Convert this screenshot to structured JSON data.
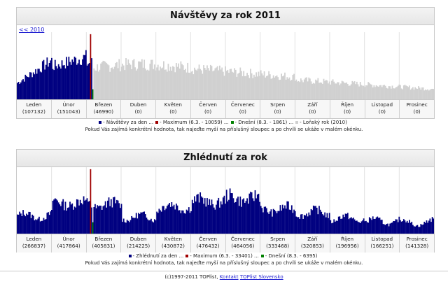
{
  "colors": {
    "visits": "#000080",
    "max": "#a00000",
    "today": "#008000",
    "last_year": "#d0d0d0"
  },
  "visits_panel": {
    "title": "Návštěvy za rok 2011",
    "prev_link": "<< 2010",
    "months": [
      {
        "name": "Leden",
        "value": "(107132)"
      },
      {
        "name": "Únor",
        "value": "(151043)"
      },
      {
        "name": "Březen",
        "value": "(46990)"
      },
      {
        "name": "Duben",
        "value": "(0)"
      },
      {
        "name": "Květen",
        "value": "(0)"
      },
      {
        "name": "Červen",
        "value": "(0)"
      },
      {
        "name": "Červenec",
        "value": "(0)"
      },
      {
        "name": "Srpen",
        "value": "(0)"
      },
      {
        "name": "Září",
        "value": "(0)"
      },
      {
        "name": "Říjen",
        "value": "(0)"
      },
      {
        "name": "Listopad",
        "value": "(0)"
      },
      {
        "name": "Prosinec",
        "value": "(0)"
      }
    ],
    "legend": [
      {
        "color": "visits",
        "text": "- Návštěvy za den ..."
      },
      {
        "color": "max",
        "text": "- Maximum (6.3. - 10059) ..."
      },
      {
        "color": "today",
        "text": "- Dnešní (8.3. - 1861) ..."
      },
      {
        "color": "last_year",
        "text": "- Loňský rok (2010)"
      }
    ],
    "hint": "Pokud Vás zajímá konkrétní hodnota, tak najeďte myší na příslušný sloupec a po chvíli se ukáže v malém okénku."
  },
  "views_panel": {
    "title": "Zhlédnutí za rok",
    "months": [
      {
        "name": "Leden",
        "value": "(266837)"
      },
      {
        "name": "Únor",
        "value": "(417864)"
      },
      {
        "name": "Březen",
        "value": "(405831)"
      },
      {
        "name": "Duben",
        "value": "(214225)"
      },
      {
        "name": "Květen",
        "value": "(430872)"
      },
      {
        "name": "Červen",
        "value": "(476432)"
      },
      {
        "name": "Červenec",
        "value": "(464056)"
      },
      {
        "name": "Srpen",
        "value": "(333468)"
      },
      {
        "name": "Září",
        "value": "(320853)"
      },
      {
        "name": "Říjen",
        "value": "(196956)"
      },
      {
        "name": "Listopad",
        "value": "(166251)"
      },
      {
        "name": "Prosinec",
        "value": "(141328)"
      }
    ],
    "legend": [
      {
        "color": "visits",
        "text": "- Zhlédnutí za den ..."
      },
      {
        "color": "max",
        "text": "- Maximum (6.3. - 33401) ..."
      },
      {
        "color": "today",
        "text": "- Dnešní (8.3. - 6395)"
      }
    ],
    "hint": "Pokud Vás zajímá konkrétní hodnota, tak najeďte myší na příslušný sloupec a po chvíli se ukáže v malém okénku."
  },
  "footer": {
    "copyright": "(c)1997-2011 TOPlist,",
    "contact": "Kontakt",
    "slovensko": "TOPlist Slovensko"
  }
}
